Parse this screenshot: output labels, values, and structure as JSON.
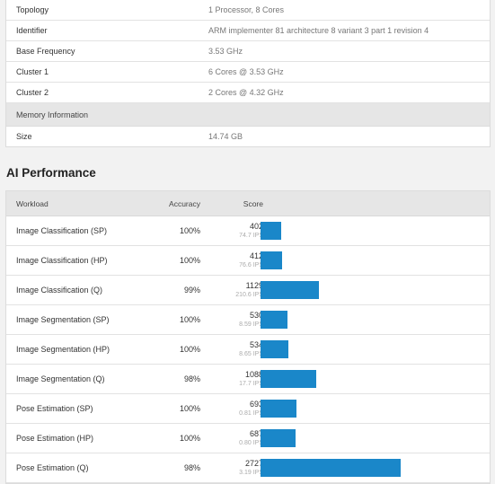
{
  "system_info": [
    {
      "label": "Topology",
      "value": "1 Processor, 8 Cores"
    },
    {
      "label": "Identifier",
      "value": "ARM implementer 81 architecture 8 variant 3 part 1 revision 4"
    },
    {
      "label": "Base Frequency",
      "value": "3.53 GHz"
    },
    {
      "label": "Cluster 1",
      "value": "6 Cores @ 3.53 GHz"
    },
    {
      "label": "Cluster 2",
      "value": "2 Cores @ 4.32 GHz"
    }
  ],
  "memory": {
    "section_label": "Memory Information",
    "rows": [
      {
        "label": "Size",
        "value": "14.74 GB"
      }
    ]
  },
  "ai_performance": {
    "title": "AI Performance",
    "headers": {
      "workload": "Workload",
      "accuracy": "Accuracy",
      "score": "Score"
    },
    "bar_color": "#1a87c9",
    "max_score": 2727,
    "rows": [
      {
        "workload": "Image Classification (SP)",
        "accuracy": "100%",
        "score": 402,
        "ips": "74.7 IPS"
      },
      {
        "workload": "Image Classification (HP)",
        "accuracy": "100%",
        "score": 412,
        "ips": "76.6 IPS"
      },
      {
        "workload": "Image Classification (Q)",
        "accuracy": "99%",
        "score": 1129,
        "ips": "210.6 IPS"
      },
      {
        "workload": "Image Segmentation (SP)",
        "accuracy": "100%",
        "score": 530,
        "ips": "8.59 IPS"
      },
      {
        "workload": "Image Segmentation (HP)",
        "accuracy": "100%",
        "score": 534,
        "ips": "8.65 IPS"
      },
      {
        "workload": "Image Segmentation (Q)",
        "accuracy": "98%",
        "score": 1088,
        "ips": "17.7 IPS"
      },
      {
        "workload": "Pose Estimation (SP)",
        "accuracy": "100%",
        "score": 693,
        "ips": "0.81 IPS"
      },
      {
        "workload": "Pose Estimation (HP)",
        "accuracy": "100%",
        "score": 687,
        "ips": "0.80 IPS"
      },
      {
        "workload": "Pose Estimation (Q)",
        "accuracy": "98%",
        "score": 2727,
        "ips": "3.19 IPS"
      }
    ]
  }
}
